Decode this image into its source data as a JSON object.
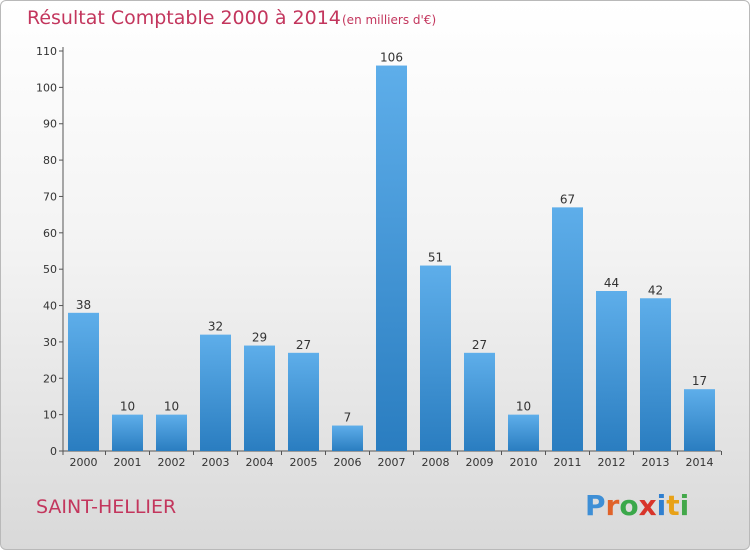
{
  "header": {
    "title": "Résultat Comptable 2000 à 2014",
    "unit": "(en milliers d'€)"
  },
  "footer": {
    "town": "SAINT-HELLIER",
    "logo_text": "Proxiti"
  },
  "colors": {
    "bar_light": "#5eaeea",
    "bar_dark": "#2a7dc0",
    "title": "#c3365d",
    "axis": "#444444"
  },
  "chart_data": {
    "type": "bar",
    "title": "Résultat Comptable 2000 à 2014",
    "subtitle": "(en milliers d'€)",
    "categories": [
      "2000",
      "2001",
      "2002",
      "2003",
      "2004",
      "2005",
      "2006",
      "2007",
      "2008",
      "2009",
      "2010",
      "2011",
      "2012",
      "2013",
      "2014"
    ],
    "values": [
      38,
      10,
      10,
      32,
      29,
      27,
      7,
      106,
      51,
      27,
      10,
      67,
      44,
      42,
      17
    ],
    "ylim": [
      0,
      110
    ],
    "yticks": [
      0,
      10,
      20,
      30,
      40,
      50,
      60,
      70,
      80,
      90,
      100,
      110
    ],
    "grid": false,
    "data_labels": true
  }
}
